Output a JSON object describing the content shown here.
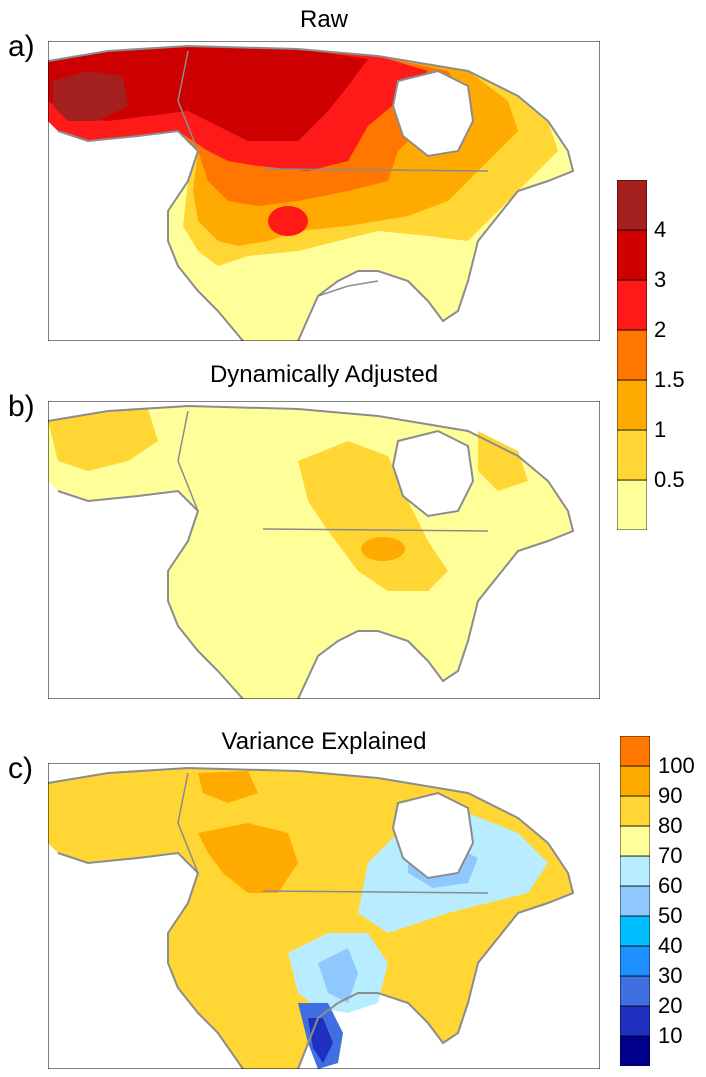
{
  "panels": [
    {
      "letter": "a)",
      "title": "Raw"
    },
    {
      "letter": "b)",
      "title": "Dynamically Adjusted"
    },
    {
      "letter": "c)",
      "title": "Variance Explained"
    }
  ],
  "colorbar_top": {
    "colors": [
      "#ffff99",
      "#ffd633",
      "#ffaa00",
      "#ff7700",
      "#ff1a1a",
      "#cc0000",
      "#a3201e"
    ],
    "labels": [
      "0.5",
      "1",
      "1.5",
      "2",
      "3",
      "4"
    ]
  },
  "colorbar_bottom": {
    "colors": [
      "#00008b",
      "#1f2fbf",
      "#3f6fe0",
      "#1e90ff",
      "#00bfff",
      "#8fc8ff",
      "#b8ecff",
      "#ffff99",
      "#ffd633",
      "#ffaa00",
      "#ff7700"
    ],
    "labels": [
      "10",
      "20",
      "30",
      "40",
      "50",
      "60",
      "70",
      "80",
      "90",
      "100"
    ]
  },
  "map_style": {
    "land": "#ffff99",
    "coast": "#8c8c8c",
    "water": "#ffffff"
  }
}
